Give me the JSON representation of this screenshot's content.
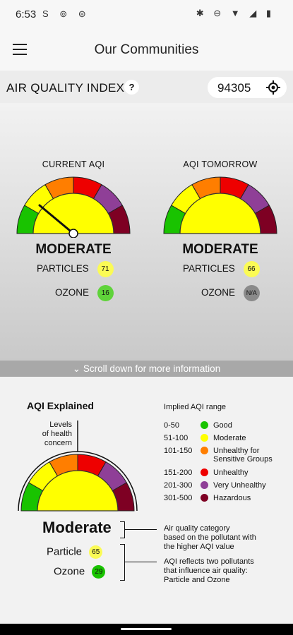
{
  "status": {
    "time": "6:53",
    "left_icons": "S ⊚ ⊜",
    "right_icons": "✱ ⊖ ▼ ◢ ▮"
  },
  "appbar": {
    "title": "Our Communities"
  },
  "aqi_header": {
    "label": "AIR QUALITY INDEX",
    "help": "?",
    "zip": "94305"
  },
  "current": {
    "caption": "CURRENT AQI",
    "category": "MODERATE",
    "particles_label": "PARTICLES",
    "particles_value": "71",
    "ozone_label": "OZONE",
    "ozone_value": "16"
  },
  "tomorrow": {
    "caption": "AQI TOMORROW",
    "category": "MODERATE",
    "particles_label": "PARTICLES",
    "particles_value": "66",
    "ozone_label": "OZONE",
    "ozone_value": "N/A"
  },
  "scroll_hint": "Scroll down for more information",
  "explain": {
    "title": "AQI Explained",
    "levels_label": [
      "Levels",
      "of health",
      "concern"
    ],
    "category": "Moderate",
    "particle_label": "Particle",
    "particle_value": "65",
    "ozone_label": "Ozone",
    "ozone_value": "29",
    "range_title": "Implied AQI range",
    "legend": [
      {
        "range": "0-50",
        "label": [
          "Good"
        ],
        "color": "#19c300"
      },
      {
        "range": "51-100",
        "label": [
          "Moderate"
        ],
        "color": "#ffff00"
      },
      {
        "range": "101-150",
        "label": [
          "Unhealthy for",
          "Sensitive Groups"
        ],
        "color": "#ff7e00"
      },
      {
        "range": "151-200",
        "label": [
          "Unhealthy"
        ],
        "color": "#ee0000"
      },
      {
        "range": "201-300",
        "label": [
          "Very Unhealthy"
        ],
        "color": "#8f3f97"
      },
      {
        "range": "301-500",
        "label": [
          "Hazardous"
        ],
        "color": "#7e0023"
      }
    ],
    "note_category": [
      "Air quality category",
      "based on the pollutant with",
      "the higher AQI value"
    ],
    "note_pollutants": [
      "AQI reflects two pollutants",
      "that influence air quality:",
      "Particle and Ozone"
    ]
  },
  "colors": {
    "good": "#19c300",
    "moderate": "#ffff00",
    "usg": "#ff7e00",
    "unhealthy": "#ee0000",
    "very_unhealthy": "#8f3f97",
    "hazardous": "#7e0023",
    "ozone_badge": "#5fd33a",
    "na_badge": "#8a8a8a",
    "particle_badge": "#fbfb55"
  }
}
